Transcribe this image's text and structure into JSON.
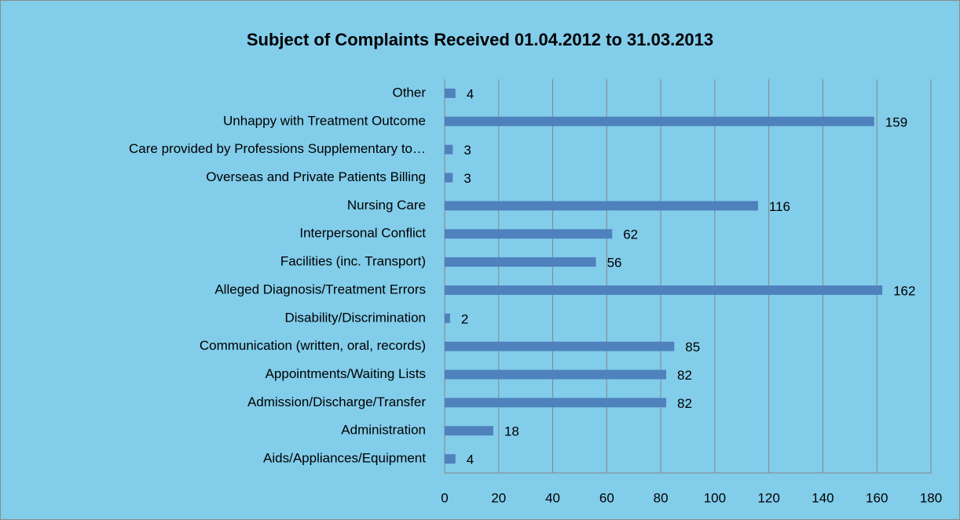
{
  "chart_data": {
    "type": "bar",
    "orientation": "horizontal",
    "title": "Subject of Complaints Received 01.04.2012 to 31.03.2013",
    "categories": [
      "Aids/Appliances/Equipment",
      "Administration",
      "Admission/Discharge/Transfer",
      "Appointments/Waiting Lists",
      "Communication (written, oral, records)",
      "Disability/Discrimination",
      "Alleged Diagnosis/Treatment Errors",
      "Facilities (inc. Transport)",
      "Interpersonal Conflict",
      "Nursing Care",
      "Overseas and Private Patients Billing",
      "Care provided by Professions Supplementary to…",
      "Unhappy with Treatment Outcome",
      "Other"
    ],
    "values": [
      4,
      18,
      82,
      82,
      85,
      2,
      162,
      56,
      62,
      116,
      3,
      3,
      159,
      4
    ],
    "color": "#4f81bd",
    "xlim": [
      0,
      180
    ],
    "xticks": [
      0,
      20,
      40,
      60,
      80,
      100,
      120,
      140,
      160,
      180
    ],
    "grid": true
  }
}
